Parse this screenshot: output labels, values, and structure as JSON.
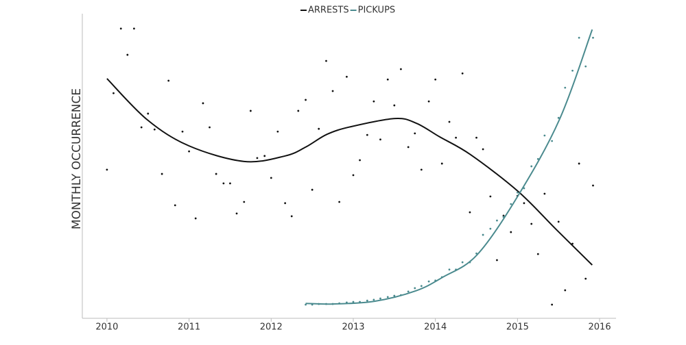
{
  "chart_data": {
    "type": "scatter",
    "ylabel": "MONTHLY OCCURRENCE",
    "xlim": [
      2009.7,
      2016.2
    ],
    "ylim": [
      0,
      100
    ],
    "xticks": [
      2010,
      2011,
      2012,
      2013,
      2014,
      2015,
      2016
    ],
    "legend": "top",
    "series": [
      {
        "name": "ARRESTS",
        "color": "#111111",
        "x": [
          2010.0,
          2010.08,
          2010.17,
          2010.25,
          2010.33,
          2010.42,
          2010.5,
          2010.58,
          2010.67,
          2010.75,
          2010.83,
          2010.92,
          2011.0,
          2011.08,
          2011.17,
          2011.25,
          2011.33,
          2011.42,
          2011.5,
          2011.58,
          2011.67,
          2011.75,
          2011.83,
          2011.92,
          2012.0,
          2012.08,
          2012.17,
          2012.25,
          2012.33,
          2012.42,
          2012.5,
          2012.58,
          2012.67,
          2012.75,
          2012.83,
          2012.92,
          2013.0,
          2013.08,
          2013.17,
          2013.25,
          2013.33,
          2013.42,
          2013.5,
          2013.58,
          2013.67,
          2013.75,
          2013.83,
          2013.92,
          2014.0,
          2014.08,
          2014.17,
          2014.25,
          2014.33,
          2014.42,
          2014.5,
          2014.58,
          2014.67,
          2014.75,
          2014.83,
          2014.92,
          2015.0,
          2015.08,
          2015.17,
          2015.25,
          2015.33,
          2015.42,
          2015.5,
          2015.58,
          2015.67,
          2015.75,
          2015.83,
          2015.92
        ],
        "values": [
          48.8,
          73.9,
          95.1,
          86.5,
          95.1,
          62.7,
          67.2,
          62.0,
          47.4,
          78.0,
          37.1,
          61.3,
          54.8,
          32.8,
          70.6,
          62.7,
          47.4,
          44.3,
          44.3,
          34.4,
          38.2,
          68.1,
          52.6,
          53.3,
          46.1,
          61.3,
          37.8,
          33.5,
          68.1,
          71.7,
          42.2,
          62.2,
          84.5,
          74.6,
          38.2,
          79.3,
          47.0,
          51.9,
          60.2,
          71.2,
          58.7,
          78.4,
          69.9,
          81.8,
          56.2,
          60.7,
          48.8,
          71.2,
          78.4,
          50.8,
          64.5,
          59.3,
          80.4,
          34.8,
          59.3,
          55.5,
          40.0,
          19.1,
          33.7,
          28.3,
          40.2,
          37.8,
          31.0,
          21.1,
          40.9,
          4.5,
          31.7,
          9.2,
          24.5,
          50.8,
          13.0,
          43.6
        ],
        "trend": {
          "x": [
            2010.0,
            2010.49,
            2011.0,
            2011.67,
            2012.17,
            2012.42,
            2012.68,
            2012.97,
            2013.51,
            2013.77,
            2014.05,
            2014.43,
            2015.01,
            2015.47,
            2015.91
          ],
          "values": [
            78.7,
            65.2,
            56.6,
            51.5,
            53.3,
            56.2,
            60.4,
            62.9,
            65.6,
            64.0,
            59.6,
            53.7,
            41.6,
            29.2,
            17.5
          ]
        }
      },
      {
        "name": "PICKUPS",
        "color": "#4a8a8e",
        "x": [
          2012.42,
          2012.5,
          2012.58,
          2012.67,
          2012.75,
          2012.83,
          2012.92,
          2013.0,
          2013.08,
          2013.17,
          2013.25,
          2013.33,
          2013.42,
          2013.5,
          2013.58,
          2013.67,
          2013.75,
          2013.83,
          2013.92,
          2014.0,
          2014.08,
          2014.17,
          2014.25,
          2014.33,
          2014.42,
          2014.5,
          2014.58,
          2014.67,
          2014.75,
          2014.83,
          2014.92,
          2015.0,
          2015.08,
          2015.17,
          2015.25,
          2015.33,
          2015.42,
          2015.5,
          2015.58,
          2015.67,
          2015.75,
          2015.83,
          2015.92
        ],
        "values": [
          4.5,
          4.5,
          4.7,
          4.7,
          4.7,
          4.9,
          5.2,
          5.4,
          5.4,
          5.8,
          6.1,
          6.5,
          7.0,
          7.4,
          7.6,
          8.8,
          9.9,
          10.6,
          12.1,
          12.4,
          13.5,
          16.0,
          16.0,
          18.4,
          18.4,
          21.3,
          27.4,
          29.4,
          32.1,
          33.3,
          37.5,
          41.3,
          42.7,
          49.9,
          52.3,
          60.0,
          58.2,
          65.8,
          75.7,
          81.3,
          92.1,
          82.7,
          92.1
        ],
        "trend": {
          "x": [
            2012.42,
            2012.75,
            2013.26,
            2013.76,
            2014.09,
            2014.51,
            2015.01,
            2015.51,
            2015.91
          ],
          "values": [
            4.9,
            4.7,
            5.6,
            9.0,
            13.5,
            20.9,
            40.4,
            65.2,
            94.8
          ]
        }
      }
    ]
  }
}
